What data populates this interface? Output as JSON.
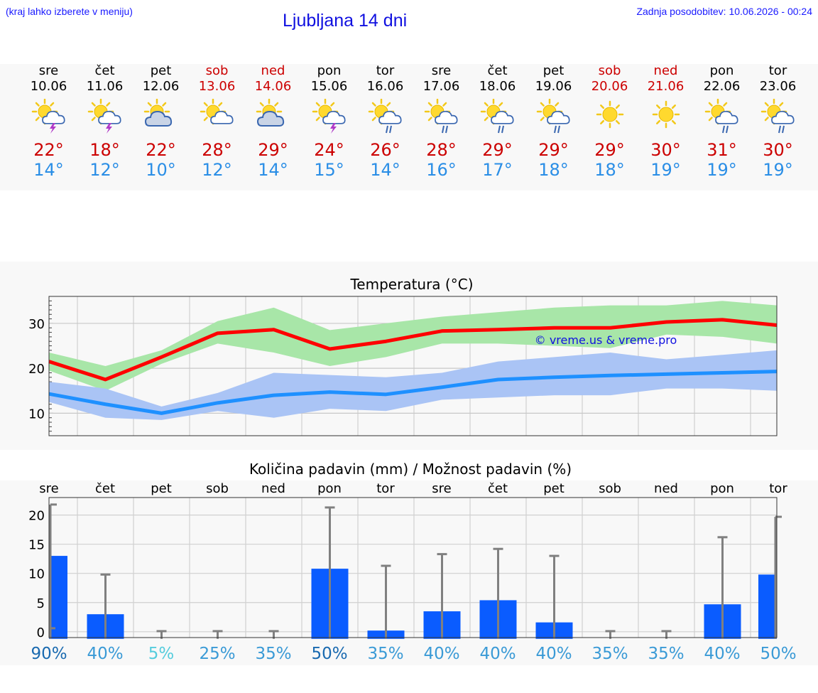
{
  "header": {
    "hint": "(kraj lahko izberete v meniju)",
    "title": "Ljubljana 14 dni",
    "updated": "Zadnja posodobitev: 10.06.2026 - 00:24"
  },
  "colors": {
    "weekend": "#cc0000",
    "max_line": "#ff0000",
    "max_band": "#a8e6a8",
    "min_line": "#1e90ff",
    "min_band": "#aac4f5",
    "bar": "#0a5cff",
    "whisker": "#808080"
  },
  "days": [
    {
      "name": "sre",
      "date": "10.06",
      "weekend": false,
      "icon": "sun-cloud-thunder-icon",
      "max": "22°",
      "min": "14°"
    },
    {
      "name": "čet",
      "date": "11.06",
      "weekend": false,
      "icon": "sun-cloud-thunder-icon",
      "max": "18°",
      "min": "12°"
    },
    {
      "name": "pet",
      "date": "12.06",
      "weekend": false,
      "icon": "sun-cloud-icon",
      "max": "22°",
      "min": "10°"
    },
    {
      "name": "sob",
      "date": "13.06",
      "weekend": true,
      "icon": "sun-small-cloud-icon",
      "max": "28°",
      "min": "12°"
    },
    {
      "name": "ned",
      "date": "14.06",
      "weekend": true,
      "icon": "sun-cloud-icon",
      "max": "29°",
      "min": "14°"
    },
    {
      "name": "pon",
      "date": "15.06",
      "weekend": false,
      "icon": "sun-cloud-thunder-icon",
      "max": "24°",
      "min": "15°"
    },
    {
      "name": "tor",
      "date": "16.06",
      "weekend": false,
      "icon": "sun-cloud-rain-icon",
      "max": "26°",
      "min": "14°"
    },
    {
      "name": "sre",
      "date": "17.06",
      "weekend": false,
      "icon": "sun-cloud-rain-icon",
      "max": "28°",
      "min": "16°"
    },
    {
      "name": "čet",
      "date": "18.06",
      "weekend": false,
      "icon": "sun-cloud-rain-icon",
      "max": "29°",
      "min": "17°"
    },
    {
      "name": "pet",
      "date": "19.06",
      "weekend": false,
      "icon": "sun-cloud-rain-icon",
      "max": "29°",
      "min": "18°"
    },
    {
      "name": "sob",
      "date": "20.06",
      "weekend": true,
      "icon": "sun-icon",
      "max": "29°",
      "min": "18°"
    },
    {
      "name": "ned",
      "date": "21.06",
      "weekend": true,
      "icon": "sun-icon",
      "max": "30°",
      "min": "19°"
    },
    {
      "name": "pon",
      "date": "22.06",
      "weekend": false,
      "icon": "sun-cloud-rain-icon",
      "max": "31°",
      "min": "19°"
    },
    {
      "name": "tor",
      "date": "23.06",
      "weekend": false,
      "icon": "sun-cloud-rain-icon",
      "max": "30°",
      "min": "19°"
    }
  ],
  "chart_data": [
    {
      "type": "line",
      "title": "Temperatura (°C)",
      "watermark": "© vreme.us & vreme.pro",
      "x": [
        "10.06",
        "11.06",
        "12.06",
        "13.06",
        "14.06",
        "15.06",
        "16.06",
        "17.06",
        "18.06",
        "19.06",
        "20.06",
        "21.06",
        "22.06",
        "23.06"
      ],
      "ylim": [
        5,
        36
      ],
      "yticks": [
        10,
        20,
        30
      ],
      "grid": true,
      "series": [
        {
          "key": "max",
          "values": [
            21.5,
            17.5,
            22.5,
            27.8,
            28.6,
            24.3,
            26.0,
            28.3,
            28.6,
            29.0,
            29.0,
            30.3,
            30.8,
            29.6
          ],
          "band_low": [
            19.5,
            15.0,
            21.0,
            25.5,
            23.5,
            20.5,
            22.5,
            25.5,
            25.5,
            25.0,
            24.5,
            27.5,
            27.0,
            25.5
          ],
          "band_high": [
            23.5,
            20.5,
            24.0,
            30.5,
            33.5,
            28.5,
            30.0,
            31.5,
            32.5,
            33.5,
            34.0,
            34.0,
            35.0,
            34.0
          ]
        },
        {
          "key": "min",
          "values": [
            14.3,
            12.0,
            10.0,
            12.3,
            14.0,
            14.7,
            14.2,
            15.8,
            17.5,
            18.0,
            18.4,
            18.7,
            19.0,
            19.3
          ],
          "band_low": [
            12.5,
            9.0,
            8.5,
            10.5,
            9.0,
            11.0,
            10.5,
            13.0,
            13.5,
            14.0,
            14.0,
            15.5,
            15.5,
            15.0
          ],
          "band_high": [
            17.0,
            15.5,
            11.5,
            14.5,
            19.0,
            18.5,
            18.0,
            19.0,
            21.5,
            22.5,
            23.5,
            22.0,
            23.0,
            24.0
          ]
        }
      ]
    },
    {
      "type": "bar",
      "title": "Količina padavin (mm) / Možnost padavin (%)",
      "categories": [
        "sre",
        "čet",
        "pet",
        "sob",
        "ned",
        "pon",
        "tor",
        "sre",
        "čet",
        "pet",
        "sob",
        "ned",
        "pon",
        "tor"
      ],
      "values": [
        13.0,
        3.0,
        0.0,
        0.0,
        0.0,
        10.8,
        0.2,
        3.5,
        5.4,
        1.6,
        0.0,
        0.0,
        4.7,
        9.8
      ],
      "whisker_high": [
        21.8,
        9.8,
        0.1,
        0.1,
        0.1,
        21.3,
        11.3,
        13.3,
        14.2,
        13.0,
        0.1,
        0.1,
        16.2,
        19.7
      ],
      "ylim": [
        -1,
        23
      ],
      "yticks": [
        0,
        5,
        10,
        15,
        20
      ],
      "probability": [
        "90%",
        "40%",
        "5%",
        "25%",
        "35%",
        "50%",
        "35%",
        "40%",
        "40%",
        "40%",
        "35%",
        "35%",
        "40%",
        "50%"
      ],
      "probability_colors": [
        "#1a6ab0",
        "#3a9ad6",
        "#55ccdd",
        "#3a9ad6",
        "#3a9ad6",
        "#1a6ab0",
        "#3a9ad6",
        "#3a9ad6",
        "#3a9ad6",
        "#3a9ad6",
        "#3a9ad6",
        "#3a9ad6",
        "#3a9ad6",
        "#3a9ad6"
      ],
      "grid": true
    }
  ]
}
